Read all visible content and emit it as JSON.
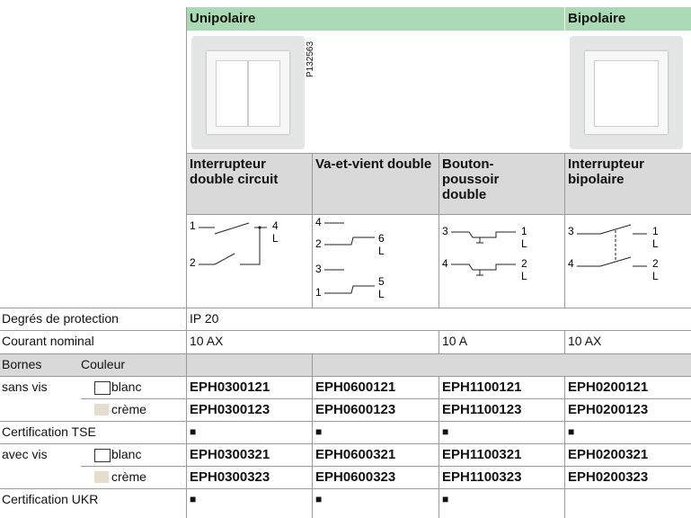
{
  "header": {
    "unipolaire": "Unipolaire",
    "bipolaire": "Bipolaire"
  },
  "photo_code": "P132563",
  "products": [
    "Interrupteur double circuit",
    "Va-et-vient double",
    "Bouton-poussoir double",
    "Interrupteur bipolaire"
  ],
  "diagrams": [
    {
      "labels": [
        "1",
        "4",
        "L",
        "2"
      ]
    },
    {
      "labels": [
        "4",
        "2",
        "6",
        "L",
        "3",
        "1",
        "5",
        "L"
      ]
    },
    {
      "labels": [
        "3",
        "1",
        "L",
        "4",
        "2",
        "L"
      ]
    },
    {
      "labels": [
        "3",
        "1",
        "L",
        "4",
        "2",
        "L"
      ]
    }
  ],
  "rows": {
    "protection": {
      "label": "Degrés de protection",
      "value": "IP 20"
    },
    "current": {
      "label": "Courant nominal",
      "values": [
        "10 AX",
        "10 A",
        "10 AX"
      ]
    },
    "terminals": {
      "label": "Bornes",
      "color_label": "Couleur"
    },
    "screwless": {
      "label": "sans vis",
      "white": "blanc",
      "cream": "crème",
      "white_refs": [
        "EPH0300121",
        "EPH0600121",
        "EPH1100121",
        "EPH0200121"
      ],
      "cream_refs": [
        "EPH0300123",
        "EPH0600123",
        "EPH1100123",
        "EPH0200123"
      ]
    },
    "tse": {
      "label": "Certification TSE",
      "marks": [
        "■",
        "■",
        "■",
        "■"
      ]
    },
    "screw": {
      "label": "avec vis",
      "white": "blanc",
      "cream": "crème",
      "white_refs": [
        "EPH0300321",
        "EPH0600321",
        "EPH1100321",
        "EPH0200321"
      ],
      "cream_refs": [
        "EPH0300323",
        "EPH0600323",
        "EPH1100323",
        "EPH0200323"
      ]
    },
    "ukr": {
      "label": "Certification UKR",
      "marks": [
        "■",
        "■",
        "■"
      ]
    }
  }
}
